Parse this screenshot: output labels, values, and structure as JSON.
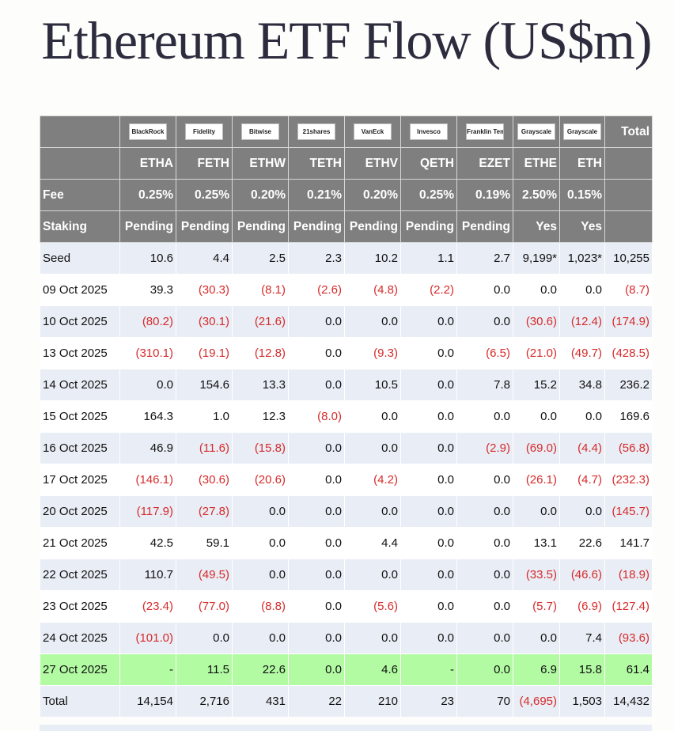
{
  "title": "Ethereum ETF Flow (US$m)",
  "colors": {
    "header_bg": "#7f7f7f",
    "alt_row": "#e9edf5",
    "latest_row": "#b2fba3",
    "negative": "#d62b2b"
  },
  "issuers": [
    "BlackRock",
    "Fidelity",
    "Bitwise",
    "21shares",
    "VanEck",
    "Invesco",
    "Franklin Templeton",
    "Grayscale",
    "Grayscale"
  ],
  "total_label": "Total",
  "tickers": [
    "ETHA",
    "FETH",
    "ETHW",
    "TETH",
    "ETHV",
    "QETH",
    "EZET",
    "ETHE",
    "ETH"
  ],
  "fee_label": "Fee",
  "fees": [
    "0.25%",
    "0.25%",
    "0.20%",
    "0.21%",
    "0.20%",
    "0.25%",
    "0.19%",
    "2.50%",
    "0.15%"
  ],
  "staking_label": "Staking",
  "staking": [
    "Pending",
    "Pending",
    "Pending",
    "Pending",
    "Pending",
    "Pending",
    "Pending",
    "Yes",
    "Yes"
  ],
  "rows": [
    {
      "label": "Seed",
      "values": [
        "10.6",
        "4.4",
        "2.5",
        "2.3",
        "10.2",
        "1.1",
        "2.7",
        "9,199*",
        "1,023*",
        "10,255"
      ]
    },
    {
      "label": "09 Oct 2025",
      "values": [
        "39.3",
        "(30.3)",
        "(8.1)",
        "(2.6)",
        "(4.8)",
        "(2.2)",
        "0.0",
        "0.0",
        "0.0",
        "(8.7)"
      ]
    },
    {
      "label": "10 Oct 2025",
      "values": [
        "(80.2)",
        "(30.1)",
        "(21.6)",
        "0.0",
        "0.0",
        "0.0",
        "0.0",
        "(30.6)",
        "(12.4)",
        "(174.9)"
      ]
    },
    {
      "label": "13 Oct 2025",
      "values": [
        "(310.1)",
        "(19.1)",
        "(12.8)",
        "0.0",
        "(9.3)",
        "0.0",
        "(6.5)",
        "(21.0)",
        "(49.7)",
        "(428.5)"
      ]
    },
    {
      "label": "14 Oct 2025",
      "values": [
        "0.0",
        "154.6",
        "13.3",
        "0.0",
        "10.5",
        "0.0",
        "7.8",
        "15.2",
        "34.8",
        "236.2"
      ]
    },
    {
      "label": "15 Oct 2025",
      "values": [
        "164.3",
        "1.0",
        "12.3",
        "(8.0)",
        "0.0",
        "0.0",
        "0.0",
        "0.0",
        "0.0",
        "169.6"
      ]
    },
    {
      "label": "16 Oct 2025",
      "values": [
        "46.9",
        "(11.6)",
        "(15.8)",
        "0.0",
        "0.0",
        "0.0",
        "(2.9)",
        "(69.0)",
        "(4.4)",
        "(56.8)"
      ]
    },
    {
      "label": "17 Oct 2025",
      "values": [
        "(146.1)",
        "(30.6)",
        "(20.6)",
        "0.0",
        "(4.2)",
        "0.0",
        "0.0",
        "(26.1)",
        "(4.7)",
        "(232.3)"
      ]
    },
    {
      "label": "20 Oct 2025",
      "values": [
        "(117.9)",
        "(27.8)",
        "0.0",
        "0.0",
        "0.0",
        "0.0",
        "0.0",
        "0.0",
        "0.0",
        "(145.7)"
      ]
    },
    {
      "label": "21 Oct 2025",
      "values": [
        "42.5",
        "59.1",
        "0.0",
        "0.0",
        "4.4",
        "0.0",
        "0.0",
        "13.1",
        "22.6",
        "141.7"
      ]
    },
    {
      "label": "22 Oct 2025",
      "values": [
        "110.7",
        "(49.5)",
        "0.0",
        "0.0",
        "0.0",
        "0.0",
        "0.0",
        "(33.5)",
        "(46.6)",
        "(18.9)"
      ]
    },
    {
      "label": "23 Oct 2025",
      "values": [
        "(23.4)",
        "(77.0)",
        "(8.8)",
        "0.0",
        "(5.6)",
        "0.0",
        "0.0",
        "(5.7)",
        "(6.9)",
        "(127.4)"
      ]
    },
    {
      "label": "24 Oct 2025",
      "values": [
        "(101.0)",
        "0.0",
        "0.0",
        "0.0",
        "0.0",
        "0.0",
        "0.0",
        "0.0",
        "7.4",
        "(93.6)"
      ]
    },
    {
      "label": "27 Oct 2025",
      "values": [
        "-",
        "11.5",
        "22.6",
        "0.0",
        "4.6",
        "-",
        "0.0",
        "6.9",
        "15.8",
        "61.4"
      ],
      "highlight": true
    },
    {
      "label": "Total",
      "values": [
        "14,154",
        "2,716",
        "431",
        "22",
        "210",
        "23",
        "70",
        "(4,695)",
        "1,503",
        "14,432"
      ],
      "is_total": true
    }
  ]
}
